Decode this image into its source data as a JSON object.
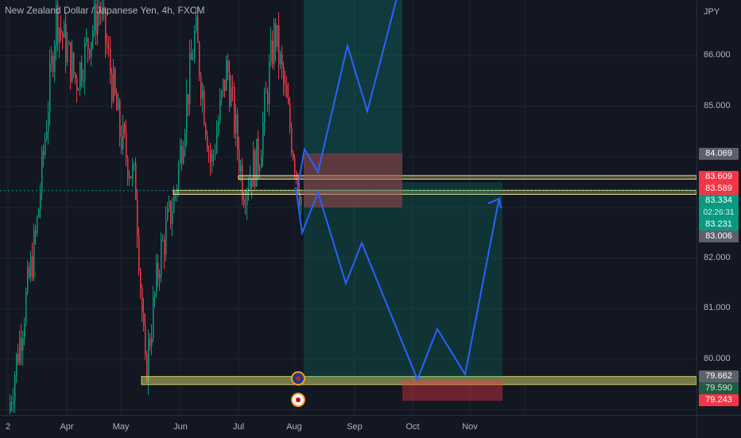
{
  "header": {
    "symbol_title": "New Zealand Dollar / Japanese Yen, 4h, FXCM"
  },
  "price_axis": {
    "currency": "JPY",
    "ticks": [
      "86.000",
      "85.000",
      "82.000",
      "81.000",
      "80.000"
    ],
    "ticks_values": [
      86,
      85,
      82,
      81,
      80
    ],
    "tags": [
      {
        "text": "84.069",
        "value": 84.069,
        "style": "gray"
      },
      {
        "text": "83.609",
        "value": 83.609,
        "style": "red"
      },
      {
        "text": "83.589",
        "value": 83.589,
        "style": "red"
      },
      {
        "text": "83.334",
        "value": 83.334,
        "style": "green"
      },
      {
        "text": "02:26:31",
        "value": 83.334,
        "style": "countdown"
      },
      {
        "text": "83.231",
        "value": 83.231,
        "style": "green"
      },
      {
        "text": "83.006",
        "value": 83.006,
        "style": "gray"
      },
      {
        "text": "79.662",
        "value": 79.662,
        "style": "gray"
      },
      {
        "text": "79.590",
        "value": 79.59,
        "style": "dark"
      },
      {
        "text": "79.243",
        "value": 79.243,
        "style": "red"
      }
    ]
  },
  "time_axis": {
    "labels": [
      "2",
      "Apr",
      "May",
      "Jun",
      "Jul",
      "Aug",
      "Sep",
      "Oct",
      "Nov"
    ]
  },
  "events": [
    {
      "name": "nz-flag-event",
      "label": ""
    },
    {
      "name": "jp-flag-event",
      "label": ""
    }
  ],
  "chart_data": {
    "type": "candlestick",
    "series_name": "NZDJPY 4h",
    "y_range": [
      78.9,
      87.1
    ],
    "current_price": 83.334,
    "horizontal_zones": [
      {
        "name": "resistance-zone-upper",
        "low": 83.56,
        "high": 83.63,
        "color": "#f0e68c"
      },
      {
        "name": "support-zone-mid",
        "low": 83.26,
        "high": 83.34,
        "color": "#f0e68c"
      },
      {
        "name": "support-zone-bottom",
        "low": 79.5,
        "high": 79.66,
        "color": "#c8c864"
      }
    ],
    "long_position": {
      "entry": 83.5,
      "stop": 83.0,
      "target": 87.2,
      "color_target": "#089981",
      "color_stop": "#f23645"
    },
    "short_position": {
      "entry": 83.5,
      "stop": 84.07,
      "target": 79.6,
      "color_target": "#089981",
      "color_stop": "#f23645"
    },
    "projection_paths": [
      {
        "name": "bullish-projection",
        "points": [
          83.45,
          84.15,
          83.7,
          86.2,
          84.9,
          87.5
        ],
        "color": "#2962ff"
      },
      {
        "name": "bearish-projection",
        "points": [
          83.4,
          82.5,
          83.3,
          81.5,
          82.3,
          79.6,
          80.6,
          79.7,
          83.2
        ],
        "color": "#2962ff"
      }
    ]
  }
}
